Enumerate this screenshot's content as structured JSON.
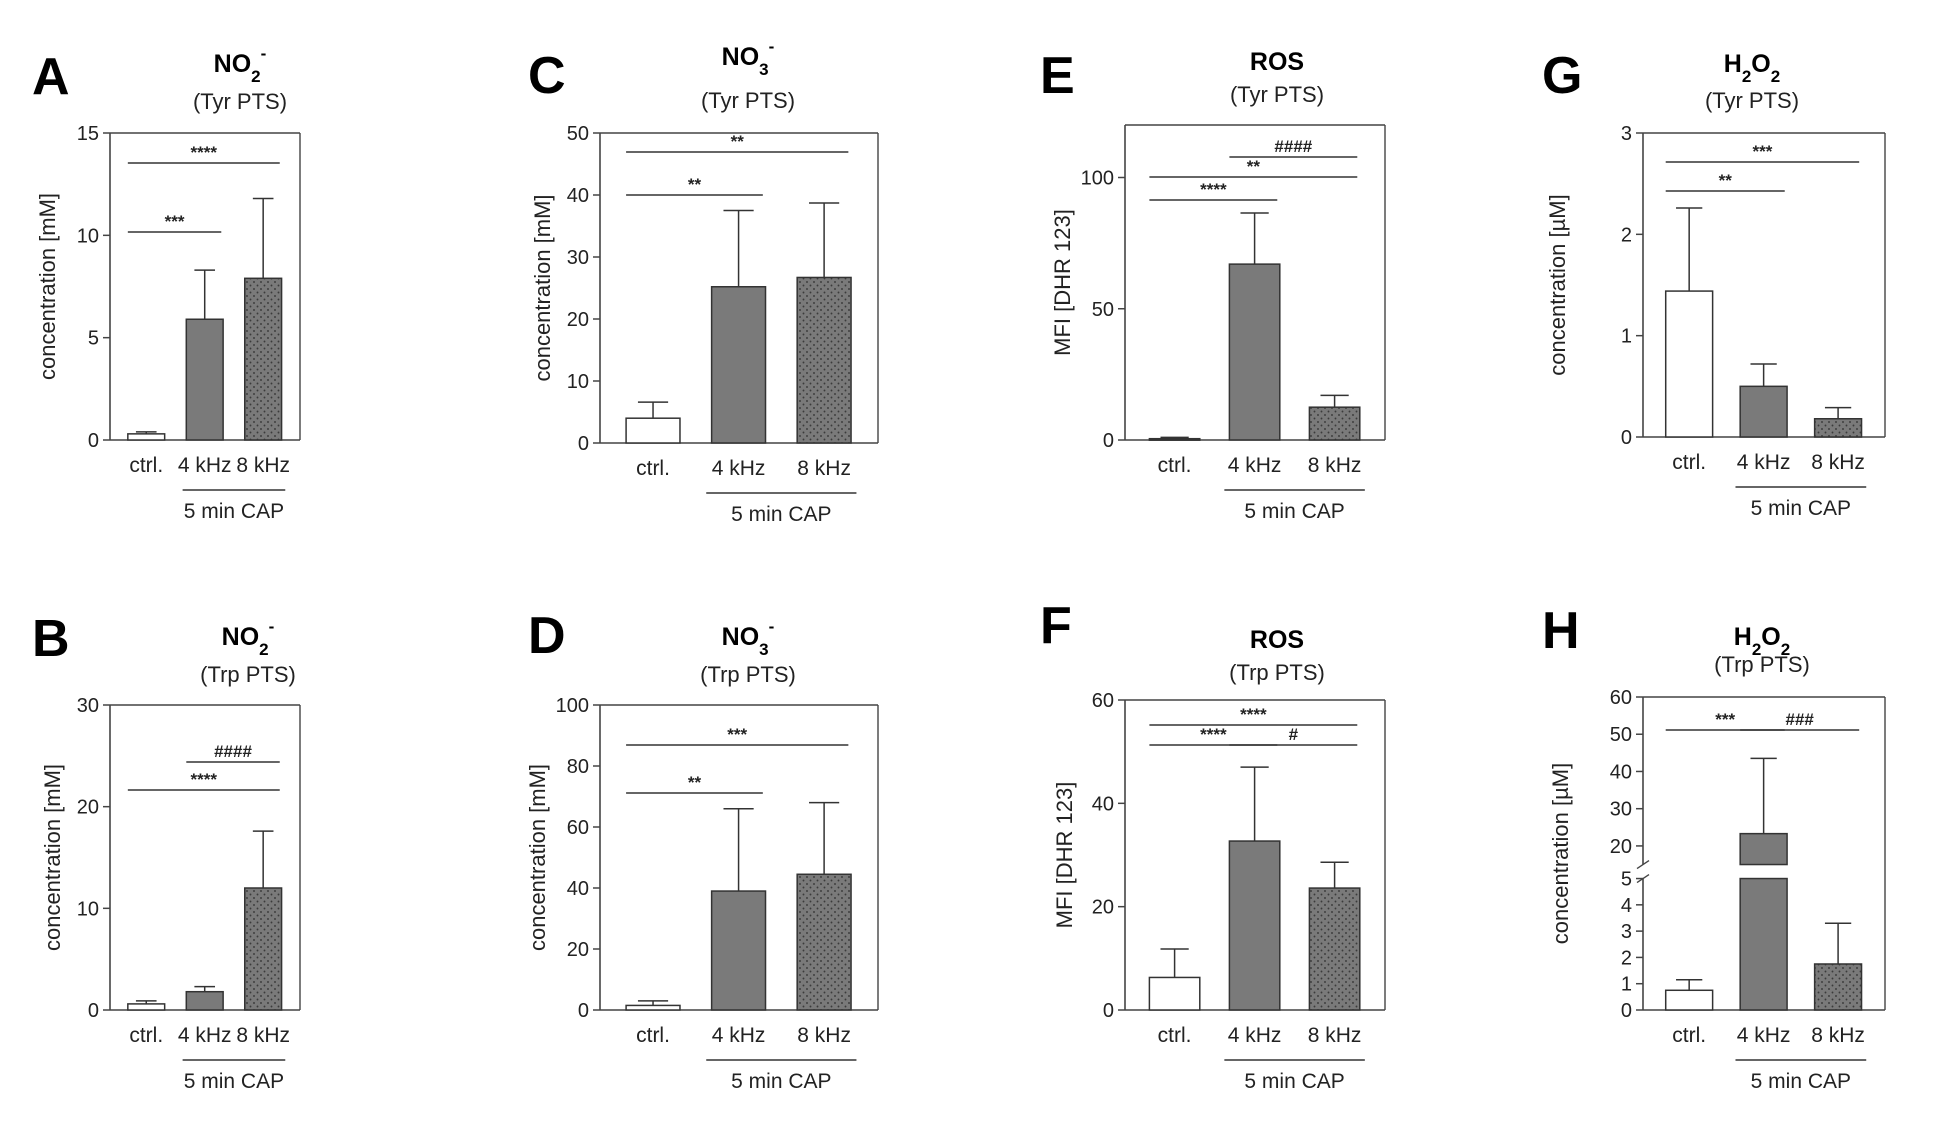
{
  "colors": {
    "ctrl_fill": "#ffffff",
    "bar_fill": "#7a7a7a",
    "dot": "#3b3b3b",
    "axis": "#444444"
  },
  "chart_data": [
    {
      "panel": "A",
      "type": "bar",
      "title": "NO2-",
      "title_main": "NO",
      "title_sub": "2",
      "title_sup": "-",
      "subtitle": "(Tyr PTS)",
      "ylabel": "concentration [mM]",
      "ylim": [
        0,
        15
      ],
      "yticks": [
        "0",
        "5",
        "10",
        "15"
      ],
      "ytick_values": [
        0,
        5,
        10,
        15
      ],
      "categories": [
        "ctrl.",
        "4 kHz",
        "8 kHz"
      ],
      "values": [
        0.3,
        5.9,
        7.9
      ],
      "errors": [
        0.1,
        2.4,
        3.9
      ],
      "group_label": "5 min CAP",
      "significance": [
        {
          "from": 0,
          "to": 1,
          "label": "***"
        },
        {
          "from": 0,
          "to": 2,
          "label": "****"
        }
      ]
    },
    {
      "panel": "B",
      "type": "bar",
      "title": "NO2-",
      "title_main": "NO",
      "title_sub": "2",
      "title_sup": "-",
      "subtitle": "(Trp PTS)",
      "ylabel": "concentration [mM]",
      "ylim": [
        0,
        30
      ],
      "yticks": [
        "0",
        "10",
        "20",
        "30"
      ],
      "ytick_values": [
        0,
        10,
        20,
        30
      ],
      "categories": [
        "ctrl.",
        "4 kHz",
        "8 kHz"
      ],
      "values": [
        0.6,
        1.8,
        12.0
      ],
      "errors": [
        0.3,
        0.5,
        5.6
      ],
      "group_label": "5 min CAP",
      "significance": [
        {
          "from": 1,
          "to": 2,
          "label": "####"
        },
        {
          "from": 0,
          "to": 2,
          "label": "****"
        }
      ]
    },
    {
      "panel": "C",
      "type": "bar",
      "title": "NO3-",
      "title_main": "NO",
      "title_sub": "3",
      "title_sup": "-",
      "subtitle": "(Tyr PTS)",
      "ylabel": "concentration [mM]",
      "ylim": [
        0,
        50
      ],
      "yticks": [
        "0",
        "10",
        "20",
        "30",
        "40",
        "50"
      ],
      "ytick_values": [
        0,
        10,
        20,
        30,
        40,
        50
      ],
      "categories": [
        "ctrl.",
        "4 kHz",
        "8 kHz"
      ],
      "values": [
        4.0,
        25.2,
        26.7
      ],
      "errors": [
        2.6,
        12.3,
        12.0
      ],
      "group_label": "5 min CAP",
      "significance": [
        {
          "from": 0,
          "to": 2,
          "label": "**"
        },
        {
          "from": 0,
          "to": 1,
          "label": "**"
        }
      ]
    },
    {
      "panel": "D",
      "type": "bar",
      "title": "NO3-",
      "title_main": "NO",
      "title_sub": "3",
      "title_sup": "-",
      "subtitle": "(Trp PTS)",
      "ylabel": "concentration [mM]",
      "ylim": [
        0,
        100
      ],
      "yticks": [
        "0",
        "20",
        "40",
        "60",
        "80",
        "100"
      ],
      "ytick_values": [
        0,
        20,
        40,
        60,
        80,
        100
      ],
      "categories": [
        "ctrl.",
        "4 kHz",
        "8 kHz"
      ],
      "values": [
        1.5,
        39.0,
        44.5
      ],
      "errors": [
        1.5,
        27.0,
        23.5
      ],
      "group_label": "5 min CAP",
      "significance": [
        {
          "from": 0,
          "to": 2,
          "label": "***"
        },
        {
          "from": 0,
          "to": 1,
          "label": "**"
        }
      ]
    },
    {
      "panel": "E",
      "type": "bar",
      "title": "ROS",
      "title_main": "ROS",
      "title_sub": "",
      "title_sup": "",
      "subtitle": "(Tyr PTS)",
      "ylabel": "MFI [DHR 123]",
      "ylim": [
        0,
        120
      ],
      "yticks": [
        "0",
        "50",
        "100"
      ],
      "ytick_values": [
        0,
        50,
        100
      ],
      "categories": [
        "ctrl.",
        "4 kHz",
        "8 kHz"
      ],
      "values": [
        0.5,
        67.0,
        12.5
      ],
      "errors": [
        0.5,
        19.5,
        4.5
      ],
      "group_label": "5 min CAP",
      "significance": [
        {
          "from": 1,
          "to": 2,
          "label": "####"
        },
        {
          "from": 0,
          "to": 2,
          "label": "**"
        },
        {
          "from": 0,
          "to": 1,
          "label": "****"
        }
      ]
    },
    {
      "panel": "F",
      "type": "bar",
      "title": "ROS",
      "title_main": "ROS",
      "title_sub": "",
      "title_sup": "",
      "subtitle": "(Trp PTS)",
      "ylabel": "MFI [DHR 123]",
      "ylim": [
        0,
        60
      ],
      "yticks": [
        "0",
        "20",
        "40",
        "60"
      ],
      "ytick_values": [
        0,
        20,
        40,
        60
      ],
      "categories": [
        "ctrl.",
        "4 kHz",
        "8 kHz"
      ],
      "values": [
        6.3,
        32.7,
        23.6
      ],
      "errors": [
        5.5,
        14.3,
        5.0
      ],
      "group_label": "5 min CAP",
      "significance": [
        {
          "from": 0,
          "to": 2,
          "label": "****"
        },
        {
          "from": 0,
          "to": 1,
          "label": "****"
        },
        {
          "from": 1,
          "to": 2,
          "label": "#"
        }
      ]
    },
    {
      "panel": "G",
      "type": "bar",
      "title": "H2O2",
      "title_main": "H",
      "title_sub": "2",
      "title_mid": "O",
      "title_sub2": "2",
      "subtitle": "(Tyr PTS)",
      "ylabel": "concentration [µM]",
      "ylim": [
        0,
        3
      ],
      "yticks": [
        "0",
        "1",
        "2",
        "3"
      ],
      "ytick_values": [
        0,
        1,
        2,
        3
      ],
      "categories": [
        "ctrl.",
        "4 kHz",
        "8 kHz"
      ],
      "values": [
        1.44,
        0.5,
        0.18
      ],
      "errors": [
        0.82,
        0.22,
        0.11
      ],
      "group_label": "5 min CAP",
      "significance": [
        {
          "from": 0,
          "to": 2,
          "label": "***"
        },
        {
          "from": 0,
          "to": 1,
          "label": "**"
        }
      ]
    },
    {
      "panel": "H",
      "type": "bar",
      "title": "H2O2",
      "title_main": "H",
      "title_sub": "2",
      "title_mid": "O",
      "title_sub2": "2",
      "subtitle": "(Trp PTS)",
      "ylabel": "concentration [µM]",
      "axis_break": {
        "lower": [
          0,
          5
        ],
        "upper": [
          15,
          60
        ]
      },
      "yticks": [
        "0",
        "1",
        "2",
        "3",
        "4",
        "5",
        "20",
        "30",
        "40",
        "50",
        "60"
      ],
      "ytick_values": [
        0,
        1,
        2,
        3,
        4,
        5,
        20,
        30,
        40,
        50,
        60
      ],
      "categories": [
        "ctrl.",
        "4 kHz",
        "8 kHz"
      ],
      "values": [
        0.75,
        23.3,
        1.75
      ],
      "errors": [
        0.4,
        20.2,
        1.55
      ],
      "group_label": "5 min CAP",
      "significance": [
        {
          "from": 0,
          "to": 1,
          "label": "***"
        },
        {
          "from": 1,
          "to": 2,
          "label": "###"
        }
      ]
    }
  ]
}
